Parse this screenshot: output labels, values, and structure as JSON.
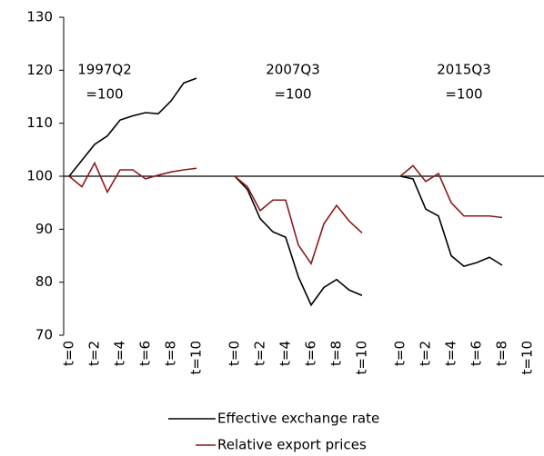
{
  "chart_data": {
    "type": "line",
    "categories": [
      "t=0",
      null,
      "t=2",
      null,
      "t=4",
      null,
      "t=6",
      null,
      "t=8",
      null,
      "t=10",
      null,
      null,
      "t=0",
      null,
      "t=2",
      null,
      "t=4",
      null,
      "t=6",
      null,
      "t=8",
      null,
      "t=10",
      null,
      null,
      "t=0",
      null,
      "t=2",
      null,
      "t=4",
      null,
      "t=6",
      null,
      "t=8",
      null,
      "t=10"
    ],
    "series": [
      {
        "name": "Effective exchange rate",
        "color": "#000000",
        "values": [
          100,
          103,
          106,
          107.6,
          110.6,
          111.4,
          112,
          111.8,
          114.2,
          117.6,
          118.5,
          null,
          null,
          100,
          97.5,
          92,
          89.5,
          88.5,
          81,
          75.7,
          79,
          80.5,
          78.5,
          77.5,
          null,
          null,
          100,
          99.5,
          93.8,
          92.5,
          85,
          83,
          83.7,
          84.7,
          83.2,
          null,
          null
        ]
      },
      {
        "name": "Relative export prices",
        "color": "#8b1a1a",
        "values": [
          100,
          98,
          102.5,
          97,
          101.2,
          101.2,
          99.5,
          100.2,
          100.8,
          101.2,
          101.5,
          null,
          null,
          100,
          98,
          93.5,
          95.5,
          95.5,
          87,
          83.5,
          91,
          94.5,
          91.5,
          89.3,
          null,
          null,
          100,
          102,
          99,
          100.5,
          95,
          92.5,
          92.5,
          92.5,
          92.2,
          null,
          null
        ]
      }
    ],
    "annotations": [
      [
        "1997Q2",
        "=100"
      ],
      [
        "2007Q3",
        "=100"
      ],
      [
        "2015Q3",
        "=100"
      ]
    ],
    "x_axis_crosses": 100,
    "ylim": [
      70,
      130
    ],
    "yticks": [
      70,
      80,
      90,
      100,
      110,
      120,
      130
    ],
    "legend": "bottom"
  }
}
